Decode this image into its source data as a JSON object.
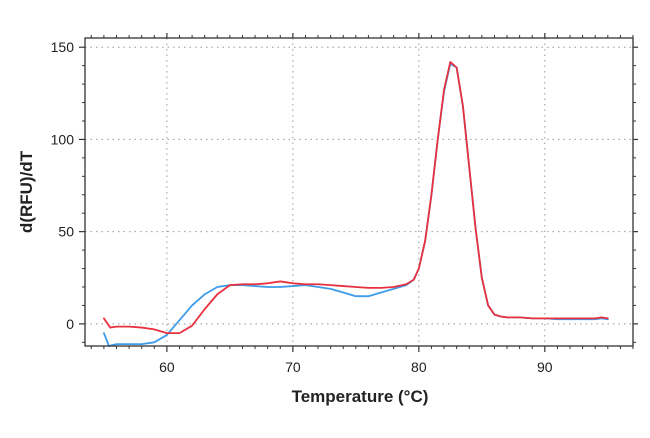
{
  "chart_data": {
    "type": "line",
    "title": "",
    "xlabel": "Temperature (°C)",
    "ylabel": "d(RFU)/dT",
    "xlim": [
      53.5,
      97
    ],
    "ylim": [
      -12,
      155
    ],
    "xticks": [
      60,
      70,
      80,
      90
    ],
    "yticks": [
      0,
      50,
      100,
      150
    ],
    "grid": true,
    "legend": "none",
    "series": [
      {
        "name": "blue trace",
        "color": "#3f9be8",
        "points": [
          [
            55,
            -5
          ],
          [
            55.4,
            -12
          ],
          [
            56,
            -11
          ],
          [
            57,
            -11
          ],
          [
            58,
            -11
          ],
          [
            59,
            -10
          ],
          [
            60,
            -6
          ],
          [
            61,
            2
          ],
          [
            62,
            10
          ],
          [
            63,
            16
          ],
          [
            64,
            20
          ],
          [
            65,
            21
          ],
          [
            66,
            21
          ],
          [
            67,
            20.5
          ],
          [
            68,
            20
          ],
          [
            69,
            20
          ],
          [
            70,
            20.5
          ],
          [
            71,
            21
          ],
          [
            72,
            20
          ],
          [
            73,
            19
          ],
          [
            74,
            17
          ],
          [
            75,
            15
          ],
          [
            76,
            15
          ],
          [
            77,
            17
          ],
          [
            78,
            19
          ],
          [
            79,
            21
          ],
          [
            79.6,
            24
          ],
          [
            80,
            30
          ],
          [
            80.5,
            45
          ],
          [
            81,
            70
          ],
          [
            81.5,
            100
          ],
          [
            82,
            126
          ],
          [
            82.5,
            141
          ],
          [
            83,
            139
          ],
          [
            83.5,
            118
          ],
          [
            84,
            85
          ],
          [
            84.5,
            52
          ],
          [
            85,
            25
          ],
          [
            85.5,
            10
          ],
          [
            86,
            5
          ],
          [
            86.5,
            4
          ],
          [
            87,
            3.5
          ],
          [
            88,
            3.5
          ],
          [
            89,
            3
          ],
          [
            90,
            3
          ],
          [
            91,
            2.5
          ],
          [
            92,
            2.5
          ],
          [
            93,
            2.5
          ],
          [
            94,
            2.5
          ],
          [
            94.5,
            3
          ],
          [
            95,
            2.5
          ]
        ]
      },
      {
        "name": "red trace",
        "color": "#e8313f",
        "points": [
          [
            55,
            3
          ],
          [
            55.5,
            -2
          ],
          [
            56,
            -1.5
          ],
          [
            57,
            -1.5
          ],
          [
            58,
            -2
          ],
          [
            59,
            -3
          ],
          [
            60,
            -5
          ],
          [
            61,
            -5
          ],
          [
            62,
            -1
          ],
          [
            63,
            8
          ],
          [
            64,
            16
          ],
          [
            65,
            21
          ],
          [
            66,
            21.5
          ],
          [
            67,
            21.5
          ],
          [
            68,
            22
          ],
          [
            69,
            23
          ],
          [
            70,
            22
          ],
          [
            71,
            21.5
          ],
          [
            72,
            21.5
          ],
          [
            73,
            21
          ],
          [
            74,
            20.5
          ],
          [
            75,
            20
          ],
          [
            76,
            19.5
          ],
          [
            77,
            19.5
          ],
          [
            78,
            20
          ],
          [
            79,
            21.5
          ],
          [
            79.6,
            24
          ],
          [
            80,
            30
          ],
          [
            80.5,
            45
          ],
          [
            81,
            70
          ],
          [
            81.5,
            100
          ],
          [
            82,
            127
          ],
          [
            82.5,
            142
          ],
          [
            83,
            139
          ],
          [
            83.5,
            118
          ],
          [
            84,
            85
          ],
          [
            84.5,
            52
          ],
          [
            85,
            25
          ],
          [
            85.5,
            10
          ],
          [
            86,
            5
          ],
          [
            86.5,
            4
          ],
          [
            87,
            3.5
          ],
          [
            88,
            3.5
          ],
          [
            89,
            3
          ],
          [
            90,
            3
          ],
          [
            91,
            3
          ],
          [
            92,
            3
          ],
          [
            93,
            3
          ],
          [
            94,
            3
          ],
          [
            94.5,
            3.5
          ],
          [
            95,
            3
          ]
        ]
      }
    ]
  }
}
